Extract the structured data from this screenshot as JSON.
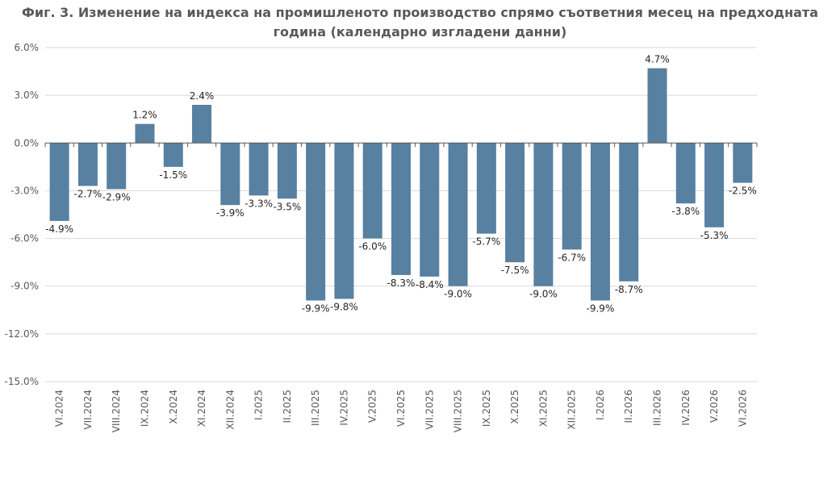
{
  "chart_data": {
    "type": "bar",
    "title": [
      "Фиг. 3. Изменение на индекса на промишленото производство спрямо съответния месец на предходната",
      "година (календарно изгладени данни)"
    ],
    "xlabel": "",
    "ylabel": "",
    "ylim": [
      -15.0,
      6.0
    ],
    "yticks": [
      "6.0%",
      "3.0%",
      "0.0%",
      "-3.0%",
      "-6.0%",
      "-9.0%",
      "-12.0%",
      "-15.0%"
    ],
    "grid": true,
    "legend": "none",
    "bar_color": "#5780a1",
    "categories": [
      "VI.2024",
      "VII.2024",
      "VIII.2024",
      "IX.2024",
      "X.2024",
      "XI.2024",
      "XII.2024",
      "I.2025",
      "II.2025",
      "III.2025",
      "IV.2025",
      "V.2025",
      "VI.2025",
      "VII.2025",
      "VIII.2025",
      "IX.2025",
      "X.2025",
      "XI.2025",
      "XII.2025",
      "I.2026",
      "II.2026",
      "III.2026",
      "IV.2026",
      "V.2026",
      "VI.2026"
    ],
    "values": [
      -4.9,
      -2.7,
      -2.9,
      1.2,
      -1.5,
      2.4,
      -3.9,
      -3.3,
      -3.5,
      -9.9,
      -9.8,
      -6.0,
      -8.3,
      -8.4,
      -9.0,
      -5.7,
      -7.5,
      -9.0,
      -6.7,
      -9.9,
      -8.7,
      4.7,
      -3.8,
      -5.3,
      -2.5
    ],
    "data_labels": [
      "-4.9%",
      "-2.7%",
      "-2.9%",
      "1.2%",
      "-1.5%",
      "2.4%",
      "-3.9%",
      "-3.3%",
      "-3.5%",
      "-9.9%",
      "-9.8%",
      "-6.0%",
      "-8.3%",
      "-8.4%",
      "-9.0%",
      "-5.7%",
      "-7.5%",
      "-9.0%",
      "-6.7%",
      "-9.9%",
      "-8.7%",
      "4.7%",
      "-3.8%",
      "-5.3%",
      "-2.5%"
    ]
  }
}
